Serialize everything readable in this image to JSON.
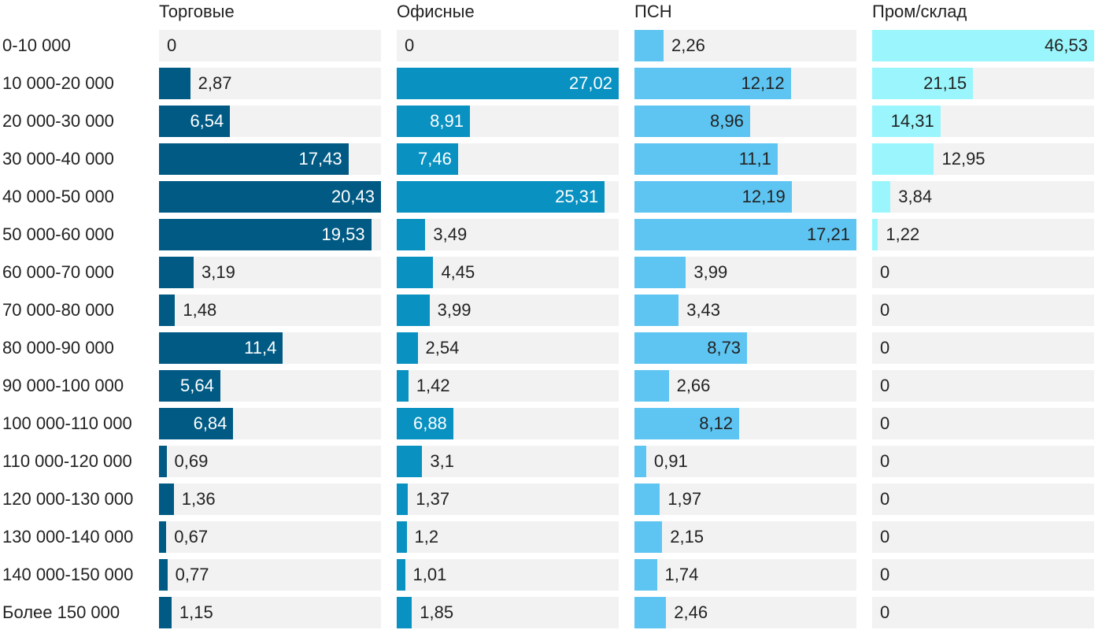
{
  "chart_data": {
    "type": "bar",
    "orientation": "horizontal",
    "layout": "small-multiples",
    "categories": [
      "0-10 000",
      "10 000-20 000",
      "20 000-30 000",
      "30 000-40 000",
      "40 000-50 000",
      "50 000-60 000",
      "60 000-70 000",
      "70 000-80 000",
      "80 000-90 000",
      "90 000-100 000",
      "100 000-110 000",
      "110 000-120 000",
      "120 000-130 000",
      "130 000-140 000",
      "140 000-150 000",
      "Более 150 000"
    ],
    "series": [
      {
        "name": "Торговые",
        "color": "#005a84",
        "values": [
          0,
          2.87,
          6.54,
          17.43,
          20.43,
          19.53,
          3.19,
          1.48,
          11.4,
          5.64,
          6.84,
          0.69,
          1.36,
          0.67,
          0.77,
          1.15
        ],
        "labels": [
          "0",
          "2,87",
          "6,54",
          "17,43",
          "20,43",
          "19,53",
          "3,19",
          "1,48",
          "11,4",
          "5,64",
          "6,84",
          "0,69",
          "1,36",
          "0,67",
          "0,77",
          "1,15"
        ]
      },
      {
        "name": "Офисные",
        "color": "#0891c1",
        "values": [
          0,
          27.02,
          8.91,
          7.46,
          25.31,
          3.49,
          4.45,
          3.99,
          2.54,
          1.42,
          6.88,
          3.1,
          1.37,
          1.2,
          1.01,
          1.85
        ],
        "labels": [
          "0",
          "27,02",
          "8,91",
          "7,46",
          "25,31",
          "3,49",
          "4,45",
          "3,99",
          "2,54",
          "1,42",
          "6,88",
          "3,1",
          "1,37",
          "1,2",
          "1,01",
          "1,85"
        ]
      },
      {
        "name": "ПСН",
        "color": "#5ec5f2",
        "values": [
          2.26,
          12.12,
          8.96,
          11.1,
          12.19,
          17.21,
          3.99,
          3.43,
          8.73,
          2.66,
          8.12,
          0.91,
          1.97,
          2.15,
          1.74,
          2.46
        ],
        "labels": [
          "2,26",
          "12,12",
          "8,96",
          "11,1",
          "12,19",
          "17,21",
          "3,99",
          "3,43",
          "8,73",
          "2,66",
          "8,12",
          "0,91",
          "1,97",
          "2,15",
          "1,74",
          "2,46"
        ]
      },
      {
        "name": "Пром/склад",
        "color": "#9af6fc",
        "values": [
          46.53,
          21.15,
          14.31,
          12.95,
          3.84,
          1.22,
          0,
          0,
          0,
          0,
          0,
          0,
          0,
          0,
          0,
          0
        ],
        "labels": [
          "46,53",
          "21,15",
          "14,31",
          "12,95",
          "3,84",
          "1,22",
          "0",
          "0",
          "0",
          "0",
          "0",
          "0",
          "0",
          "0",
          "0",
          "0"
        ]
      }
    ],
    "grid": false,
    "legend": "none"
  }
}
